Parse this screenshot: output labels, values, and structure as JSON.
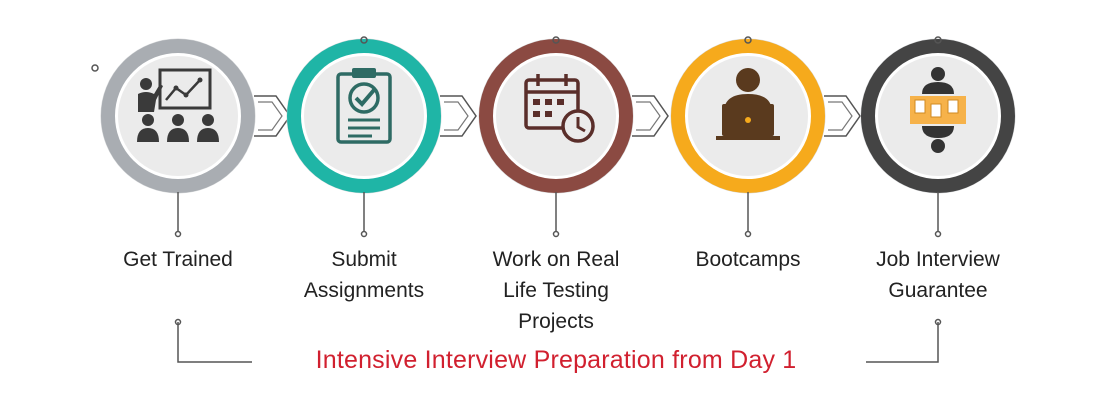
{
  "colors": {
    "step1": "#a9adb2",
    "step2": "#1fb5a6",
    "step3": "#8b4a42",
    "step4": "#f6aa1c",
    "step5": "#444444",
    "icon": "#3a3a3a",
    "accent_red": "#d1202f",
    "connector": "#555555"
  },
  "steps": [
    {
      "label": "Get Trained",
      "icon": "presentation-icon"
    },
    {
      "label": "Submit\nAssignments",
      "icon": "clipboard-check-icon"
    },
    {
      "label": "Work on Real\nLife Testing\nProjects",
      "icon": "calendar-clock-icon"
    },
    {
      "label": "Bootcamps",
      "icon": "laptop-user-icon"
    },
    {
      "label": "Job Interview\nGuarantee",
      "icon": "interview-table-icon"
    }
  ],
  "banner": {
    "text": "Intensive Interview Preparation from Day 1"
  }
}
